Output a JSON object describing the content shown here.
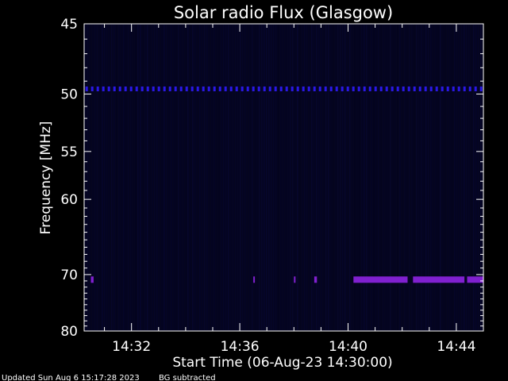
{
  "chart_data": {
    "type": "heatmap",
    "title": "Solar radio Flux (Glasgow)",
    "ylabel": "Frequency [MHz]",
    "xlabel": "Start Time (06-Aug-23 14:30:00)",
    "x_range_minutes": [
      0.25,
      15.0
    ],
    "y_range_mhz": [
      45,
      80
    ],
    "y_ticks": [
      {
        "value": 45,
        "label": "45"
      },
      {
        "value": 50,
        "label": "50"
      },
      {
        "value": 55,
        "label": "55"
      },
      {
        "value": 60,
        "label": "60"
      },
      {
        "value": 70,
        "label": "70"
      },
      {
        "value": 80,
        "label": "80"
      }
    ],
    "x_ticks": [
      {
        "minute": 2,
        "label": "14:32"
      },
      {
        "minute": 6,
        "label": "14:36"
      },
      {
        "minute": 10,
        "label": "14:40"
      },
      {
        "minute": 14,
        "label": "14:44"
      }
    ],
    "bands": [
      {
        "frequency_mhz": 49.6,
        "color": "#2a18e6",
        "segments": [
          [
            0.3,
            15.0
          ]
        ],
        "dashed": true
      },
      {
        "frequency_mhz": 70.8,
        "color": "#8020d0",
        "segments": [
          [
            0.5,
            0.6
          ],
          [
            6.5,
            6.55
          ],
          [
            8.0,
            8.05
          ],
          [
            8.75,
            8.85
          ],
          [
            10.2,
            12.2
          ],
          [
            12.4,
            14.3
          ],
          [
            14.4,
            15.0
          ]
        ],
        "dashed": false
      }
    ],
    "grid": false,
    "colors": {
      "background": "#000000",
      "plot_background": "#05051f",
      "axes": "#ffffff"
    }
  },
  "footer": {
    "updated": "Updated Sun Aug  6 15:17:28 2023",
    "note": "BG subtracted"
  }
}
